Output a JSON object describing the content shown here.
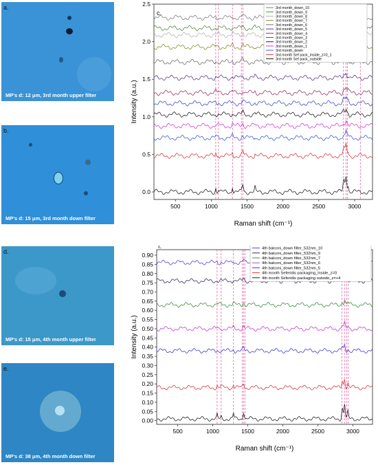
{
  "panels": [
    {
      "id": "a",
      "letter": "a.",
      "caption": "MP's d: 12 μm, 3rd month upper filter",
      "color": "#3a93d6"
    },
    {
      "id": "b",
      "letter": "b.",
      "caption": "MP's d: 15 μm, 3rd month down filter",
      "color": "#2f8fd8"
    },
    {
      "id": "d",
      "letter": "d.",
      "caption": "MP's d: 15 μm, 4th month upper filter",
      "color": "#3c98c9"
    },
    {
      "id": "e",
      "letter": "e.",
      "caption": "MP's d: 38 μm, 4th month down filter",
      "color": "#2e86c4"
    }
  ],
  "chart_data": [
    {
      "type": "line",
      "panel_label": "c.",
      "xlabel": "Raman shift (cm⁻¹)",
      "ylabel": "Intensity (a.u.)",
      "xlim": [
        200,
        3250
      ],
      "ylim": [
        -0.1,
        2.5
      ],
      "xticks": [
        500,
        1000,
        1500,
        2000,
        2500,
        3000
      ],
      "yticks": [
        0.0,
        0.5,
        1.0,
        1.5,
        2.0,
        2.5
      ],
      "legend_position": "top-right",
      "grid": false,
      "reference_lines": [
        1062,
        1100,
        1296,
        1420,
        1440,
        2845,
        2880,
        2900,
        3080
      ],
      "series": [
        {
          "name": "3rd month_down_10",
          "color": "#7f7f7f",
          "baseline": 2.32
        },
        {
          "name": "3rd month_down_9",
          "color": "#4e8f3a",
          "baseline": 2.18
        },
        {
          "name": "3rd month_down_8",
          "color": "#b5b5b5",
          "baseline": 2.09
        },
        {
          "name": "3rd month_down_7",
          "color": "#8a8a2e",
          "baseline": 1.93
        },
        {
          "name": "3rd month_down_6",
          "color": "#6b6b6b",
          "baseline": 1.73
        },
        {
          "name": "3rd month_down_5",
          "color": "#5a3a8a",
          "baseline": 1.52
        },
        {
          "name": "3rd month_down_4",
          "color": "#993366",
          "baseline": 1.32
        },
        {
          "name": "3rd month_down_3",
          "color": "#3b4fc4",
          "baseline": 1.18
        },
        {
          "name": "3rd month_down_2",
          "color": "#222222",
          "baseline": 1.03
        },
        {
          "name": "3rd month_down_1",
          "color": "#d63ad6",
          "baseline": 0.88
        },
        {
          "name": "3rd month_down",
          "color": "#3a5fd6",
          "baseline": 0.72
        },
        {
          "name": "3rd month Sef pack_inside_z=0_1",
          "color": "#d63a3a",
          "baseline": 0.48
        },
        {
          "name": "3rd month Sef pack_outside",
          "color": "#222222",
          "baseline": 0.0
        }
      ]
    },
    {
      "type": "line",
      "panel_label": "f.",
      "xlabel": "Raman shift (cm⁻¹)",
      "ylabel": "Intensity (a.u.)",
      "xlim": [
        200,
        3280
      ],
      "ylim": [
        -0.02,
        0.93
      ],
      "xticks": [
        500,
        1000,
        1500,
        2000,
        2500,
        3000
      ],
      "yticks": [
        0.0,
        0.05,
        0.1,
        0.15,
        0.2,
        0.25,
        0.3,
        0.35,
        0.4,
        0.45,
        0.5,
        0.55,
        0.6,
        0.65,
        0.7,
        0.75,
        0.8,
        0.85,
        0.9
      ],
      "legend_position": "top-right",
      "grid": false,
      "reference_lines": [
        1062,
        1120,
        1296,
        1420,
        1440,
        1460,
        2845,
        2885,
        2910,
        2935
      ],
      "series": [
        {
          "name": "4th balconi_down filter_532nm_10",
          "color": "#5b3fd6",
          "baseline": 0.86
        },
        {
          "name": "4th balconi_down filter_532nm_9",
          "color": "#2d2d6b",
          "baseline": 0.76
        },
        {
          "name": "4th balconi_down filter_532nm_7",
          "color": "#3a8f3a",
          "baseline": 0.63
        },
        {
          "name": "4th balconi_down filter_532nm_6",
          "color": "#c23ad6",
          "baseline": 0.5
        },
        {
          "name": "4th balconi_down filter_532nm_5",
          "color": "#3a3ad6",
          "baseline": 0.38
        },
        {
          "name": "4th month Seferidis packaging_inside_z=0",
          "color": "#d63a3a",
          "baseline": 0.18
        },
        {
          "name": "4th month Seferidis packaging outside_z=+4",
          "color": "#222222",
          "baseline": 0.01
        }
      ]
    }
  ]
}
